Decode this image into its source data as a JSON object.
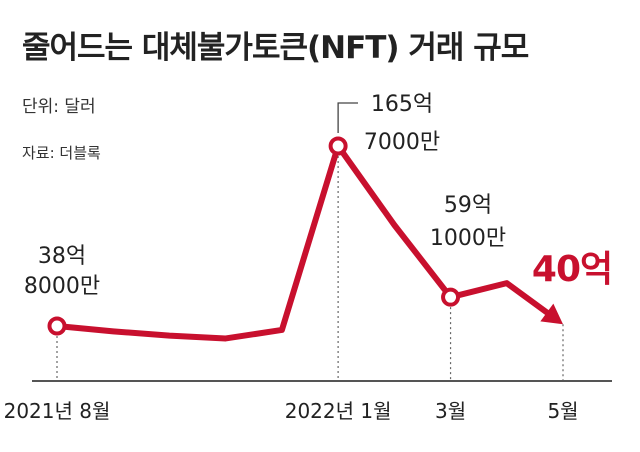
{
  "chart_data": {
    "type": "line",
    "title": "줄어드는 대체불가토큰(NFT) 거래 규모",
    "unit_label": "단위: 달러",
    "source_label": "자료: 더블록",
    "x": [
      "2021-08",
      "2021-09",
      "2021-10",
      "2021-11",
      "2021-12",
      "2022-01",
      "2022-02",
      "2022-03",
      "2022-04",
      "2022-05"
    ],
    "x_tick_labels": [
      {
        "x": "2021-08",
        "label": "2021년 8월"
      },
      {
        "x": "2022-01",
        "label": "2022년 1월"
      },
      {
        "x": "2022-03",
        "label": "3월"
      },
      {
        "x": "2022-05",
        "label": "5월"
      }
    ],
    "series": [
      {
        "values": [
          3880000000,
          3500000000,
          3200000000,
          3000000000,
          3600000000,
          16570000000,
          11000000000,
          5910000000,
          6900000000,
          4000000000
        ]
      }
    ],
    "annotations": [
      {
        "x": "2021-08",
        "lines": [
          "38억",
          "8000만"
        ]
      },
      {
        "x": "2022-01",
        "lines": [
          "165억",
          "7000만"
        ]
      },
      {
        "x": "2022-03",
        "lines": [
          "59억",
          "1000만"
        ]
      },
      {
        "x": "2022-05",
        "lines": [
          "40억"
        ],
        "highlight": true
      }
    ],
    "grid": false,
    "legend": "none",
    "line_color": "#c8102e",
    "marker_stroke_color": "#c8102e",
    "marker_fill_color": "#ffffff",
    "axis_color": "#555555"
  }
}
